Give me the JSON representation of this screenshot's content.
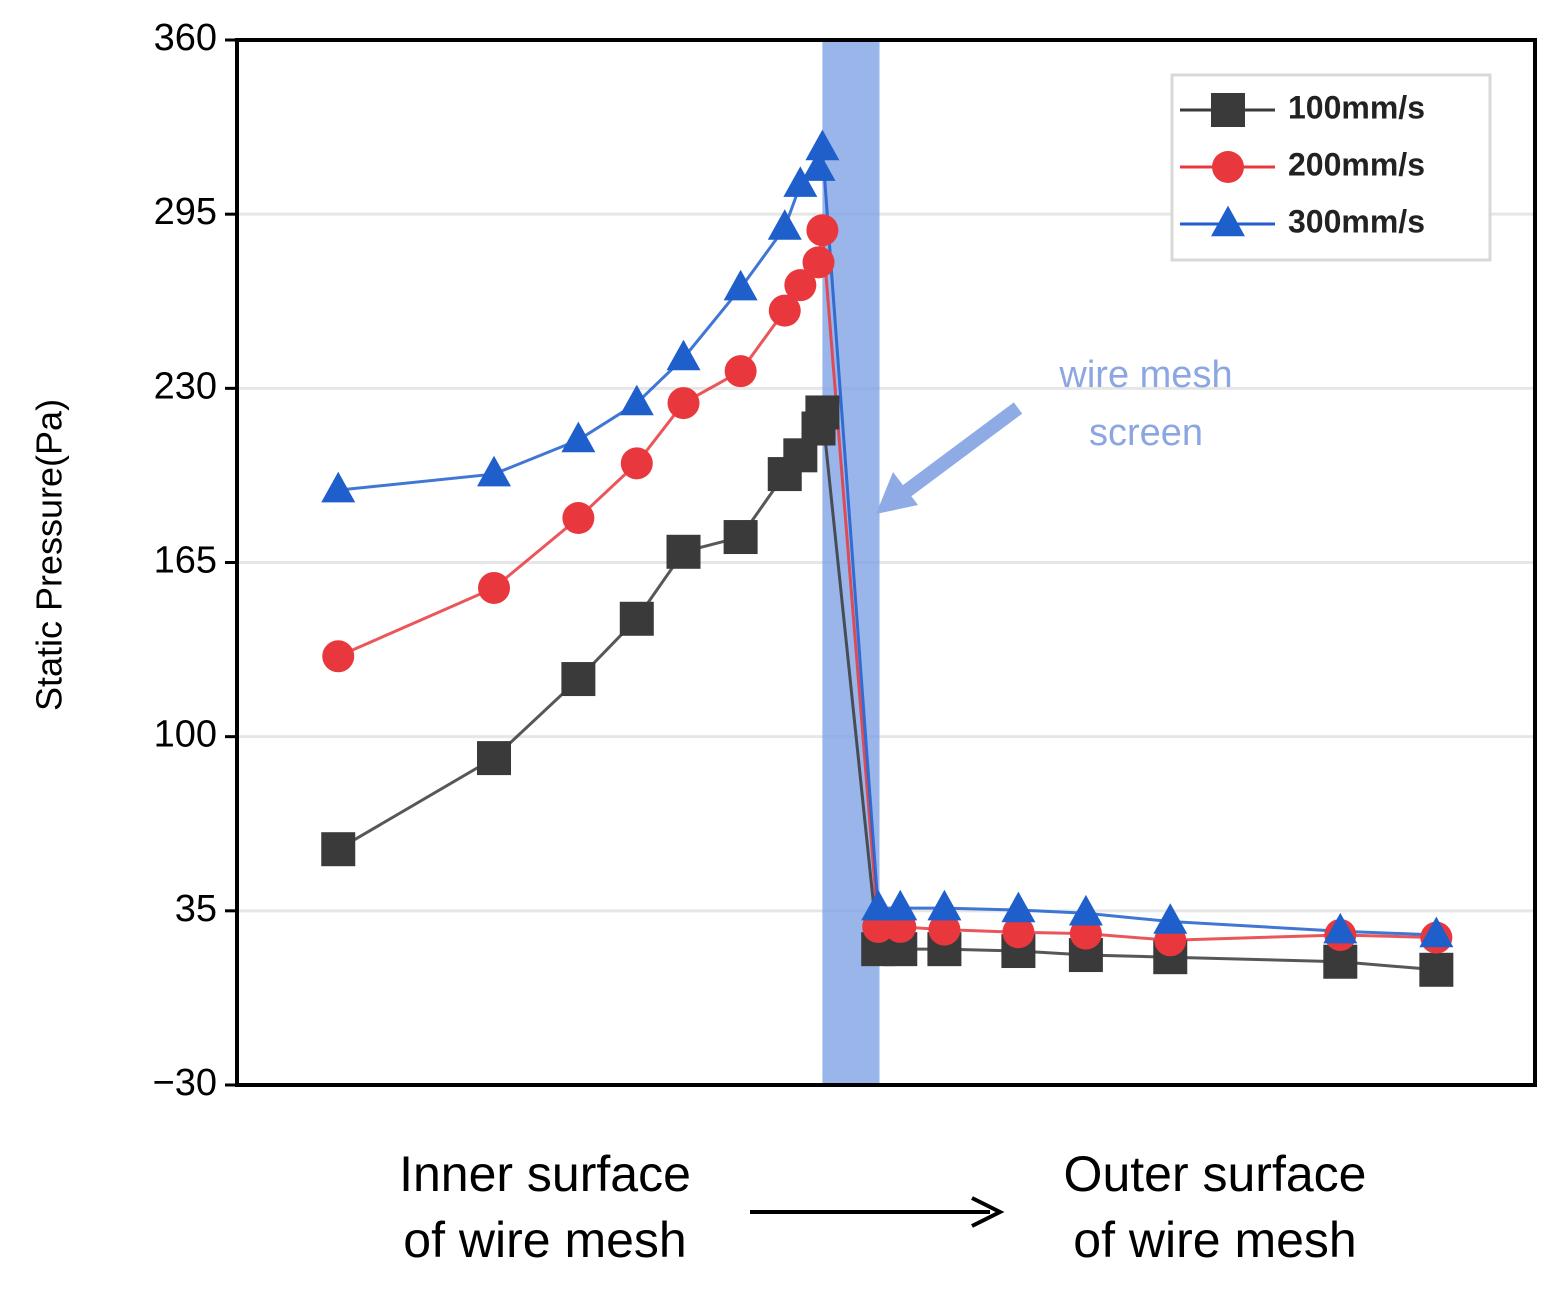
{
  "chart_data": {
    "type": "line",
    "ylabel": "Static Pressure(Pa)",
    "x_labels": [
      [
        "Inner surface",
        "of wire mesh"
      ],
      [
        "Outer surface",
        "of wire mesh"
      ]
    ],
    "annotation": {
      "lines": [
        "wire mesh",
        "screen"
      ],
      "color": "#8ba6e0"
    },
    "shaded_region": {
      "x": [
        45.1,
        49.5
      ],
      "color": "#7fa3e3"
    },
    "xlim": [
      0,
      100
    ],
    "ylim": [
      -30,
      360
    ],
    "yticks": [
      {
        "value": -30,
        "label": "−30"
      },
      35,
      100,
      165,
      230,
      295,
      360
    ],
    "grid": true,
    "legend": "upper right",
    "x": [
      7.8,
      19.8,
      26.3,
      30.8,
      34.4,
      38.8,
      42.2,
      43.4,
      44.8,
      45.1,
      49.4,
      51.1,
      54.5,
      60.2,
      65.4,
      71.9,
      85,
      92.4
    ],
    "series": [
      {
        "name": "100mm/s",
        "color": "#3a3a3a",
        "marker": "square",
        "values": [
          58,
          92,
          121.5,
          144,
          169,
          174.5,
          198,
          205,
          215,
          221,
          20.7,
          20.7,
          20.7,
          20,
          18.5,
          17.7,
          16,
          13
        ]
      },
      {
        "name": "200mm/s",
        "color": "#e8383d",
        "marker": "circle",
        "values": [
          130,
          155.5,
          181.6,
          202,
          224.5,
          236.4,
          259,
          268.5,
          277,
          289,
          29,
          29,
          28,
          27,
          26.5,
          24,
          26,
          25
        ]
      },
      {
        "name": "300mm/s",
        "color": "#1f5fcc",
        "marker": "triangle",
        "values": [
          192,
          198,
          210.7,
          224.5,
          241.3,
          267.4,
          290,
          306,
          312,
          319.7,
          36,
          36,
          36,
          35.3,
          34.1,
          31,
          27.4,
          26
        ]
      }
    ]
  }
}
